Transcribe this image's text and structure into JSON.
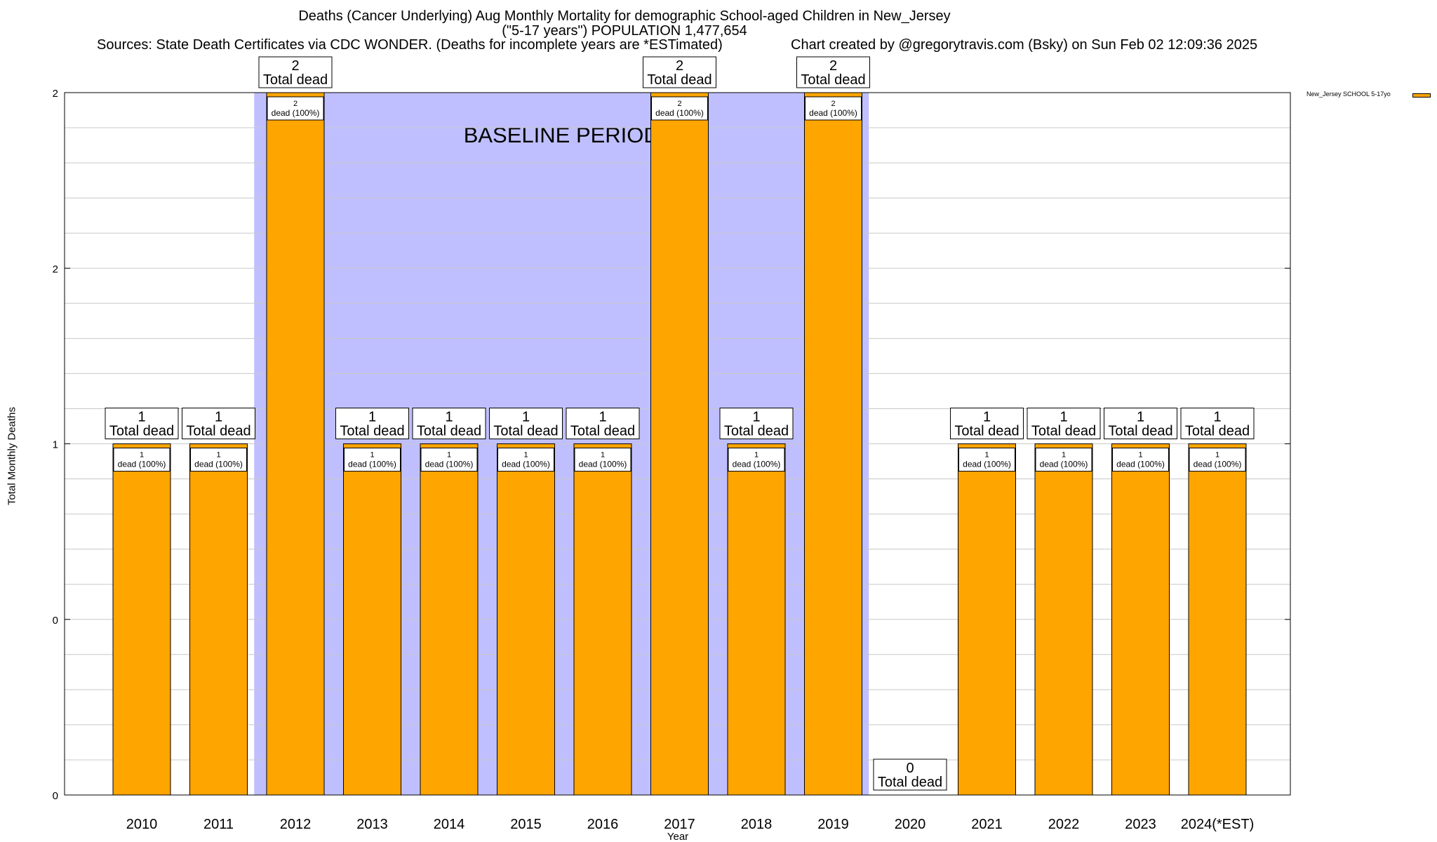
{
  "chart_data": {
    "type": "bar",
    "title": "Deaths (Cancer Underlying) Aug Monthly Mortality for demographic School-aged Children in New_Jersey",
    "subtitle": "(\"5-17 years\") POPULATION 1,477,654",
    "sources": "Sources: State Death Certificates via CDC WONDER. (Deaths for incomplete years are *ESTimated)",
    "credit": "Chart created by @gregorytravis.com (Bsky) on Sun Feb 02 12:09:36 2025",
    "xlabel": "Year",
    "ylabel": "Total Monthly Deaths",
    "ylim": [
      0,
      2
    ],
    "yticks": [
      {
        "value": 0,
        "label": "0"
      },
      {
        "value": 0.5,
        "label": "0"
      },
      {
        "value": 1,
        "label": "1"
      },
      {
        "value": 1.5,
        "label": "2"
      },
      {
        "value": 2,
        "label": "2"
      }
    ],
    "categories": [
      "2010",
      "2011",
      "2012",
      "2013",
      "2014",
      "2015",
      "2016",
      "2017",
      "2018",
      "2019",
      "2020",
      "2021",
      "2022",
      "2023",
      "2024(*EST)"
    ],
    "series": [
      {
        "name": "New_Jersey SCHOOL 5-17yo",
        "color": "#FFA500",
        "values": [
          1,
          1,
          2,
          1,
          1,
          1,
          1,
          2,
          1,
          2,
          0,
          1,
          1,
          1,
          1
        ]
      }
    ],
    "total_labels": [
      "1",
      "1",
      "2",
      "1",
      "1",
      "1",
      "1",
      "2",
      "1",
      "2",
      "0",
      "1",
      "1",
      "1",
      "1"
    ],
    "total_suffix": "Total dead",
    "inner_suffix": "dead (100%)",
    "baseline": {
      "label": "BASELINE PERIOD",
      "start": "2012",
      "end": "2019",
      "color": "#BFBFFF"
    },
    "legend": {
      "label": "New_Jersey SCHOOL 5-17yo",
      "position": "top-right"
    }
  }
}
